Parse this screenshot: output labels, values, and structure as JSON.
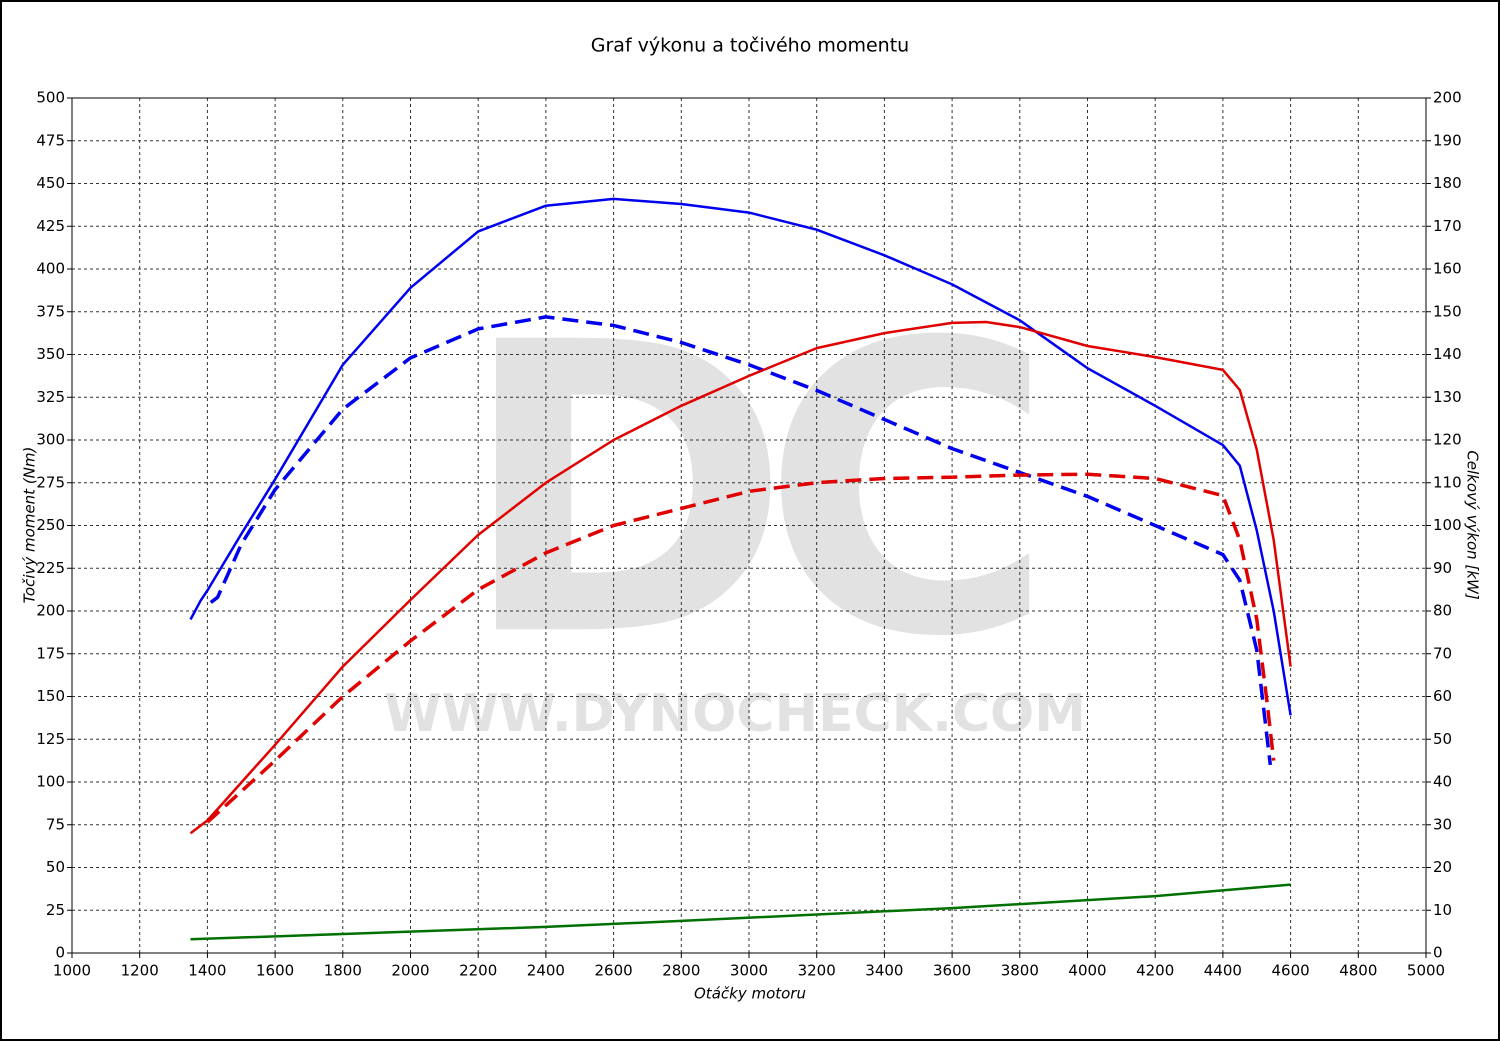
{
  "chart_data": {
    "type": "line",
    "title": "Graf výkonu a točivého momentu",
    "xlabel": "Otáčky motoru",
    "ylabel": "Točivý moment (Nm)",
    "y2label": "Celkový výkon [kW]",
    "watermark": [
      "DC",
      "WWW.DYNOCHECK.COM"
    ],
    "xlim": [
      1000,
      5000
    ],
    "xticks": [
      1000,
      1200,
      1400,
      1600,
      1800,
      2000,
      2200,
      2400,
      2600,
      2800,
      3000,
      3200,
      3400,
      3600,
      3800,
      4000,
      4200,
      4400,
      4600,
      4800,
      5000
    ],
    "ylim": [
      0,
      500
    ],
    "yticks": [
      0,
      25,
      50,
      75,
      100,
      125,
      150,
      175,
      200,
      225,
      250,
      275,
      300,
      325,
      350,
      375,
      400,
      425,
      450,
      475,
      500
    ],
    "y2lim": [
      0,
      200
    ],
    "y2ticks": [
      0,
      10,
      20,
      30,
      40,
      50,
      60,
      70,
      80,
      90,
      100,
      110,
      120,
      130,
      140,
      150,
      160,
      170,
      180,
      190,
      200
    ],
    "grid": true,
    "series": [
      {
        "color": "#0000ee",
        "dash": false,
        "axis": "y",
        "x": [
          1350,
          1380,
          1400,
          1500,
          1600,
          1800,
          2000,
          2200,
          2400,
          2600,
          2800,
          3000,
          3200,
          3400,
          3600,
          3800,
          4000,
          4200,
          4400,
          4450,
          4500,
          4550,
          4600
        ],
        "values": [
          195,
          206,
          212,
          245,
          277,
          344,
          389,
          422,
          437,
          441,
          438,
          433,
          423,
          408,
          391,
          370,
          342,
          320,
          297,
          285,
          247,
          200,
          139
        ]
      },
      {
        "color": "#0000ee",
        "dash": true,
        "axis": "y",
        "x": [
          1410,
          1430,
          1500,
          1600,
          1800,
          2000,
          2200,
          2400,
          2600,
          2800,
          3000,
          3200,
          3400,
          3600,
          3800,
          4000,
          4200,
          4400,
          4450,
          4500,
          4540
        ],
        "values": [
          205,
          208,
          239,
          271,
          318,
          348,
          365,
          372,
          367,
          357,
          344,
          329,
          312,
          295,
          281,
          267,
          250,
          233,
          218,
          177,
          110
        ]
      },
      {
        "color": "#e00000",
        "dash": false,
        "axis": "y2",
        "x": [
          1350,
          1400,
          1600,
          1800,
          2000,
          2200,
          2400,
          2600,
          2800,
          3000,
          3200,
          3400,
          3600,
          3700,
          3800,
          4000,
          4200,
          4400,
          4450,
          4500,
          4550,
          4600
        ],
        "values": [
          28,
          31,
          48.7,
          67,
          82.6,
          97.8,
          110,
          120,
          128,
          135,
          141.5,
          145,
          147.4,
          147.6,
          146.4,
          142,
          139.4,
          136.4,
          131.7,
          117.7,
          96.6,
          67
        ]
      },
      {
        "color": "#e00000",
        "dash": true,
        "axis": "y2",
        "x": [
          1400,
          1600,
          1800,
          2000,
          2200,
          2400,
          2600,
          2800,
          3000,
          3200,
          3400,
          3600,
          3800,
          4000,
          4200,
          4400,
          4450,
          4500,
          4530,
          4550
        ],
        "values": [
          30.6,
          45,
          60,
          73,
          85,
          93.6,
          100,
          104,
          108,
          110,
          111,
          111.3,
          111.8,
          112,
          111,
          107,
          96.6,
          78,
          59,
          45
        ]
      },
      {
        "color": "#007000",
        "dash": false,
        "axis": "y2",
        "x": [
          1350,
          2000,
          2400,
          2800,
          3600,
          4200,
          4600
        ],
        "values": [
          3.2,
          5,
          6.1,
          7.5,
          10.5,
          13.3,
          16
        ]
      }
    ]
  }
}
